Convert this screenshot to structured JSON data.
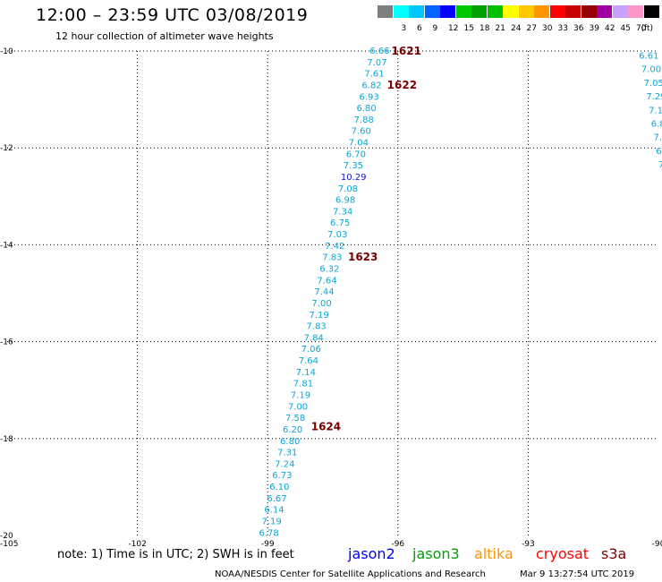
{
  "header": {
    "title": "12:00 – 23:59 UTC 03/08/2019",
    "subtitle": "12 hour collection of altimeter wave heights"
  },
  "scale": {
    "unit": "(ft)",
    "items": [
      {
        "label": "",
        "color": "#7f7f7f"
      },
      {
        "label": "3",
        "color": "#00ffff"
      },
      {
        "label": "6",
        "color": "#00c8ff"
      },
      {
        "label": "9",
        "color": "#0064ff"
      },
      {
        "label": "12",
        "color": "#0000ff"
      },
      {
        "label": "15",
        "color": "#00c800"
      },
      {
        "label": "18",
        "color": "#00a000"
      },
      {
        "label": "21",
        "color": "#00c000"
      },
      {
        "label": "24",
        "color": "#ffff00"
      },
      {
        "label": "27",
        "color": "#ffc800"
      },
      {
        "label": "30",
        "color": "#ff9600"
      },
      {
        "label": "33",
        "color": "#ff0000"
      },
      {
        "label": "36",
        "color": "#c80000"
      },
      {
        "label": "39",
        "color": "#960000"
      },
      {
        "label": "42",
        "color": "#a000a0"
      },
      {
        "label": "45",
        "color": "#c8a0ff"
      },
      {
        "label": "70",
        "color": "#ff96c8"
      },
      {
        "label": "",
        "color": "#000000"
      }
    ]
  },
  "map": {
    "lat_labels": [
      "-10",
      "-12",
      "-14",
      "-16",
      "-18",
      "-20"
    ],
    "lat_values": [
      -10,
      -12,
      -14,
      -16,
      -18,
      -20
    ],
    "lon_labels": [
      "-105",
      "-102",
      "-99",
      "-96",
      "-93",
      "-90"
    ],
    "lon_values": [
      -105,
      -102,
      -99,
      -96,
      -93,
      -90
    ],
    "lat_range": [
      -20,
      -10
    ],
    "lon_range": [
      -105,
      -90
    ],
    "grid": "dotted",
    "track_color": "#0aa5d8",
    "track_color_high": "#0a14d2",
    "track1": {
      "heights": [
        "6.66",
        "7.07",
        "7.61",
        "6.82",
        "6.93",
        "6.80",
        "7.88",
        "7.60",
        "7.04",
        "6.70",
        "7.35",
        "10.29",
        "7.08",
        "6.98",
        "7.34",
        "6.75",
        "7.03",
        "7.42",
        "7.83",
        "6.32",
        "7.64",
        "7.44",
        "7.00",
        "7.19",
        "7.83",
        "7.84",
        "7.06",
        "7.64",
        "7.14",
        "7.81",
        "7.19",
        "7.00",
        "7.58",
        "6.20",
        "6.80",
        "7.31",
        "7.24",
        "6.73",
        "6.10",
        "6.67",
        "6.14",
        "7.19",
        "6.78"
      ],
      "lat_start": -10.0,
      "lat_end": -19.95,
      "lon_start": -96.65,
      "lon_end": -99.2
    },
    "track2": {
      "heights": [
        "6.61",
        "7.00",
        "7.05",
        "7.29",
        "7.1",
        "6.8",
        "7.",
        "6.",
        "7"
      ],
      "lat_start": -10.1,
      "lat_end": -12.35,
      "lon_start": -90.45,
      "lon_end": -90.0
    },
    "passes": [
      {
        "label": "1621",
        "lat": -10.0,
        "lon": -96.15
      },
      {
        "label": "1622",
        "lat": -10.7,
        "lon": -96.25
      },
      {
        "label": "1623",
        "lat": -14.25,
        "lon": -97.15
      },
      {
        "label": "1624",
        "lat": -17.75,
        "lon": -98.0
      }
    ]
  },
  "footer": {
    "note": "note:  1) Time is in UTC;  2) SWH is in feet",
    "legend": [
      {
        "label": "jason2",
        "color": "#0000ff"
      },
      {
        "label": "jason3",
        "color": "#00a000"
      },
      {
        "label": "altika",
        "color": "#ff9600"
      },
      {
        "label": "cryosat",
        "color": "#ff0000"
      },
      {
        "label": "s3a",
        "color": "#7a0000"
      }
    ],
    "credit": "NOAA/NESDIS Center for Satellite Applications and Research",
    "timestamp": "Mar  9 13:27:54 UTC 2019"
  }
}
